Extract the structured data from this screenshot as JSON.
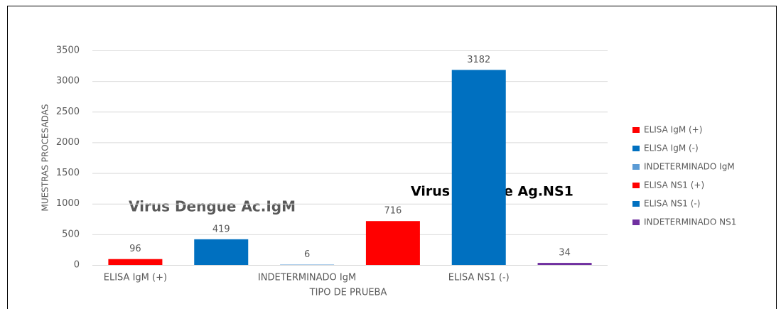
{
  "chart_data": {
    "type": "bar",
    "categories": [
      "ELISA IgM (+)",
      null,
      "INDETERMINADO IgM",
      null,
      "ELISA NS1 (-)",
      null
    ],
    "series": [
      {
        "name": "ELISA IgM (+)",
        "color": "#ff0000",
        "values": [
          96,
          null,
          null,
          null,
          null,
          null
        ]
      },
      {
        "name": "ELISA IgM (-)",
        "color": "#0070c0",
        "values": [
          null,
          419,
          null,
          null,
          null,
          null
        ]
      },
      {
        "name": "INDETERMINADO IgM",
        "color": "#5b9bd5",
        "values": [
          null,
          null,
          6,
          null,
          null,
          null
        ]
      },
      {
        "name": "ELISA NS1 (+)",
        "color": "#ff0000",
        "values": [
          null,
          null,
          null,
          716,
          null,
          null
        ]
      },
      {
        "name": "ELISA NS1 (-)",
        "color": "#0070c0",
        "values": [
          null,
          null,
          null,
          null,
          3182,
          null
        ]
      },
      {
        "name": "INDETERMINADO NS1",
        "color": "#7030a0",
        "values": [
          null,
          null,
          null,
          null,
          null,
          34
        ]
      }
    ],
    "x_label": "TIPO DE PRUEBA",
    "y_label": "MUESTRAS PROCESADAS",
    "annotations": [
      "Virus Dengue Ac.IgM",
      "Virus Dengue Ag.NS1"
    ],
    "ylim": [
      0,
      3500
    ],
    "yticks": [
      0,
      500,
      1000,
      1500,
      2000,
      2500,
      3000,
      3500
    ],
    "grid": true,
    "legend": "right"
  }
}
